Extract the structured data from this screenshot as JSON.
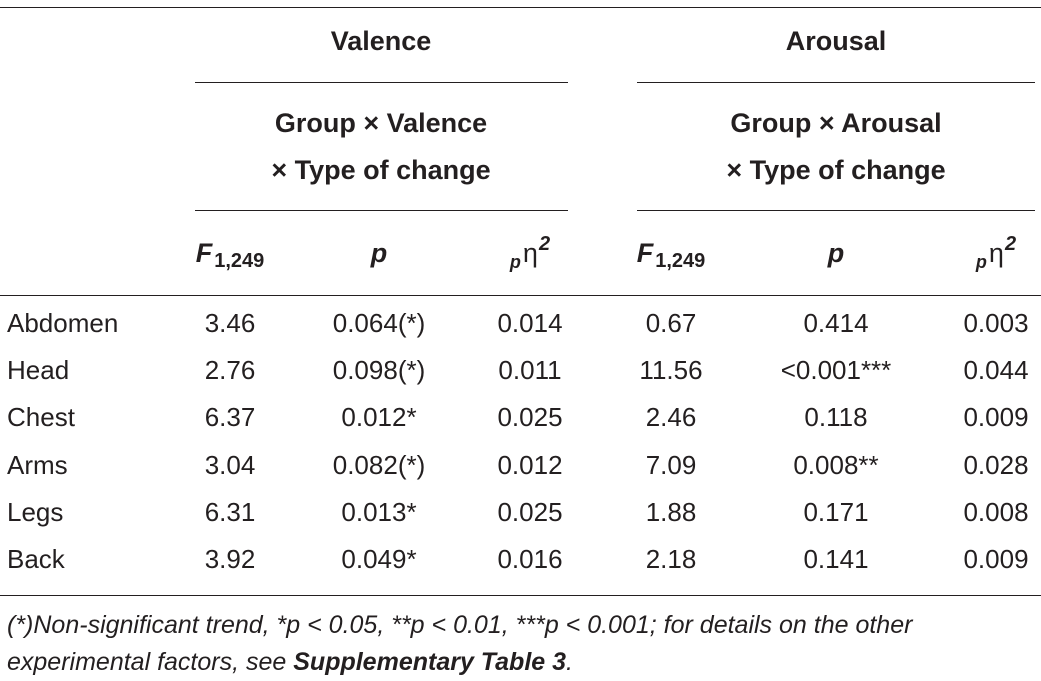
{
  "groups": {
    "valence": {
      "title": "Valence",
      "effect_line1": "Group × Valence",
      "effect_line2": "× Type of change"
    },
    "arousal": {
      "title": "Arousal",
      "effect_line1": "Group × Arousal",
      "effect_line2": "× Type of change"
    }
  },
  "columns": {
    "f_symbol": "F",
    "f_subscript": "1,249",
    "p_symbol": "p",
    "eta_pre": "p",
    "eta_symbol": "η",
    "eta_sup": "2"
  },
  "rows": [
    {
      "label": "Abdomen",
      "vf": "3.46",
      "vp": "0.064(*)",
      "ve": "0.014",
      "af": "0.67",
      "ap": "0.414",
      "ae": "0.003"
    },
    {
      "label": "Head",
      "vf": "2.76",
      "vp": "0.098(*)",
      "ve": "0.011",
      "af": "11.56",
      "ap": "<0.001***",
      "ae": "0.044"
    },
    {
      "label": "Chest",
      "vf": "6.37",
      "vp": "0.012*",
      "ve": "0.025",
      "af": "2.46",
      "ap": "0.118",
      "ae": "0.009"
    },
    {
      "label": "Arms",
      "vf": "3.04",
      "vp": "0.082(*)",
      "ve": "0.012",
      "af": "7.09",
      "ap": "0.008**",
      "ae": "0.028"
    },
    {
      "label": "Legs",
      "vf": "6.31",
      "vp": "0.013*",
      "ve": "0.025",
      "af": "1.88",
      "ap": "0.171",
      "ae": "0.008"
    },
    {
      "label": "Back",
      "vf": "3.92",
      "vp": "0.049*",
      "ve": "0.016",
      "af": "2.18",
      "ap": "0.141",
      "ae": "0.009"
    }
  ],
  "footnote": {
    "line1": "(*)Non-significant trend, *p < 0.05, **p < 0.01, ***p < 0.001; for details on the other",
    "line2_pre": "experimental factors, see ",
    "line2_bold": "Supplementary Table 3",
    "line2_post": "."
  }
}
